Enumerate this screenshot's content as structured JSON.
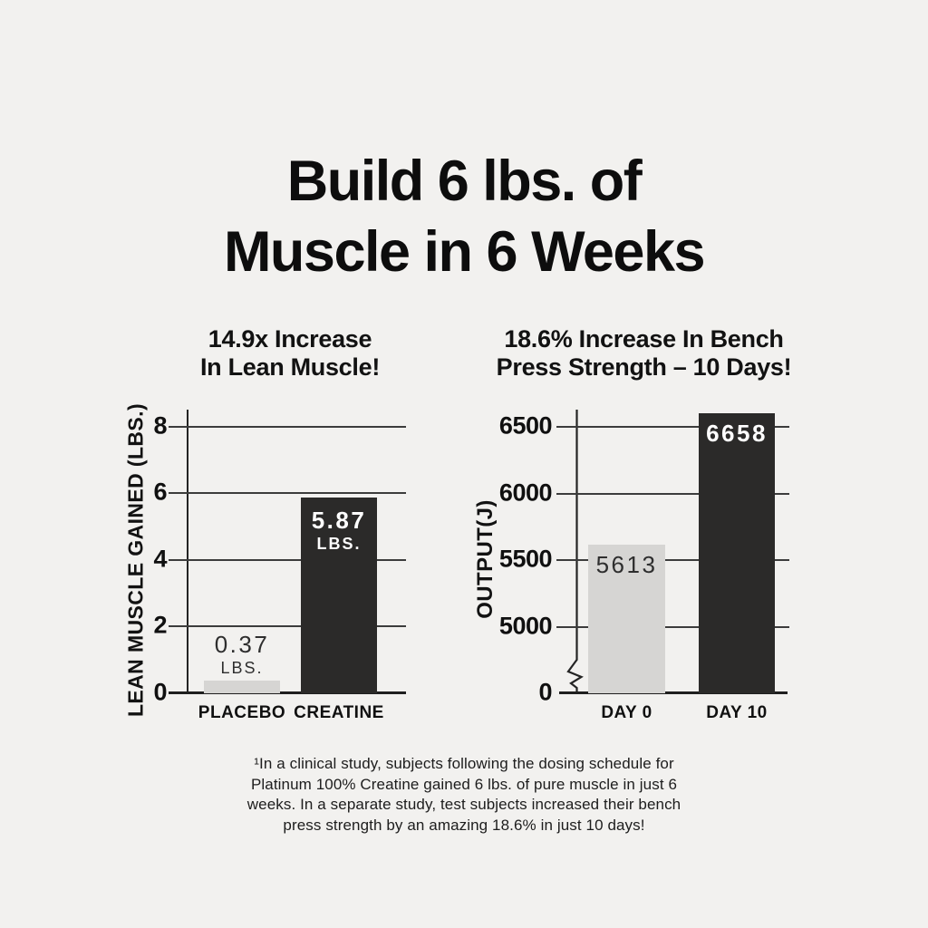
{
  "colors": {
    "background": "#f2f1ef",
    "bar_light": "#d6d5d3",
    "bar_dark": "#2b2a29",
    "grid_line": "#3c3c3c",
    "axis_line": "#242424",
    "text_dark": "#2e2e2e",
    "text_on_dark": "#ffffff"
  },
  "title": {
    "lines": [
      "Build 6 lbs. of",
      "Muscle in 6 Weeks"
    ]
  },
  "chart_data": [
    {
      "type": "bar",
      "title": "14.9x Increase In Lean Muscle!",
      "title_lines": [
        "14.9x Increase",
        "In Lean Muscle!"
      ],
      "ylabel": "LEAN MUSCLE GAINED (LBS.)",
      "xlabel": "",
      "categories": [
        "PLACEBO",
        "CREATINE"
      ],
      "values": [
        0.37,
        5.87
      ],
      "value_labels": [
        {
          "value": "0.37",
          "unit": "LBS."
        },
        {
          "value": "5.87",
          "unit": "LBS."
        }
      ],
      "yticks": [
        0,
        2,
        4,
        6,
        8
      ],
      "ylim": [
        0,
        8.5
      ],
      "grid": true,
      "legend": false,
      "bar_colors": [
        "#d6d5d3",
        "#2b2a29"
      ]
    },
    {
      "type": "bar",
      "title": "18.6% Increase In Bench Press Strength – 10 Days!",
      "title_lines": [
        "18.6% Increase In Bench",
        "Press Strength – 10 Days!"
      ],
      "ylabel": "OUTPUT(J)",
      "xlabel": "",
      "categories": [
        "DAY 0",
        "DAY 10"
      ],
      "values": [
        5613,
        6658
      ],
      "value_labels": [
        {
          "value": "5613"
        },
        {
          "value": "6658"
        }
      ],
      "yticks": [
        0,
        5000,
        5500,
        6000,
        6500
      ],
      "ylim": [
        0,
        6700
      ],
      "axis_break_between": [
        0,
        5000
      ],
      "grid": true,
      "legend": false,
      "bar_colors": [
        "#d6d5d3",
        "#2b2a29"
      ]
    }
  ],
  "footnote": {
    "lines": [
      "¹In a clinical study, subjects following the dosing schedule for",
      "Platinum 100% Creatine gained 6 lbs. of pure muscle in just 6",
      "weeks. In a separate study, test subjects increased their bench",
      "press strength by an amazing 18.6% in just 10 days!"
    ]
  }
}
